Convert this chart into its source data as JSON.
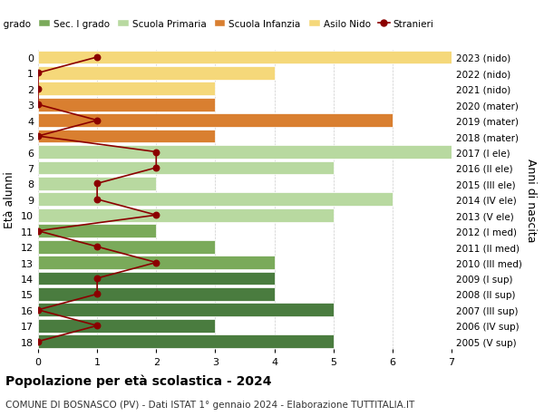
{
  "ages": [
    18,
    17,
    16,
    15,
    14,
    13,
    12,
    11,
    10,
    9,
    8,
    7,
    6,
    5,
    4,
    3,
    2,
    1,
    0
  ],
  "right_labels": [
    "2005 (V sup)",
    "2006 (IV sup)",
    "2007 (III sup)",
    "2008 (II sup)",
    "2009 (I sup)",
    "2010 (III med)",
    "2011 (II med)",
    "2012 (I med)",
    "2013 (V ele)",
    "2014 (IV ele)",
    "2015 (III ele)",
    "2016 (II ele)",
    "2017 (I ele)",
    "2018 (mater)",
    "2019 (mater)",
    "2020 (mater)",
    "2021 (nido)",
    "2022 (nido)",
    "2023 (nido)"
  ],
  "bar_values": [
    5,
    3,
    5,
    4,
    4,
    4,
    3,
    2,
    5,
    6,
    2,
    5,
    7,
    3,
    6,
    3,
    3,
    4,
    7
  ],
  "bar_colors": [
    "#4a7c3f",
    "#4a7c3f",
    "#4a7c3f",
    "#4a7c3f",
    "#4a7c3f",
    "#7aaa5a",
    "#7aaa5a",
    "#7aaa5a",
    "#b8d9a0",
    "#b8d9a0",
    "#b8d9a0",
    "#b8d9a0",
    "#b8d9a0",
    "#d97f30",
    "#d97f30",
    "#d97f30",
    "#f5d87a",
    "#f5d87a",
    "#f5d87a"
  ],
  "stranieri_values": [
    0,
    1,
    0,
    1,
    1,
    2,
    1,
    0,
    2,
    1,
    1,
    2,
    2,
    0,
    1,
    0,
    0,
    0,
    1
  ],
  "legend_labels": [
    "Sec. II grado",
    "Sec. I grado",
    "Scuola Primaria",
    "Scuola Infanzia",
    "Asilo Nido",
    "Stranieri"
  ],
  "legend_colors": [
    "#4a7c3f",
    "#7aaa5a",
    "#b8d9a0",
    "#d97f30",
    "#f5d87a",
    "#8b0000"
  ],
  "title": "Popolazione per età scolastica - 2024",
  "subtitle": "COMUNE DI BOSNASCO (PV) - Dati ISTAT 1° gennaio 2024 - Elaborazione TUTTITALIA.IT",
  "ylabel_left": "Età alunni",
  "ylabel_right": "Anni di nascita",
  "xlim": [
    0,
    7
  ],
  "background_color": "#ffffff",
  "grid_color": "#cccccc"
}
